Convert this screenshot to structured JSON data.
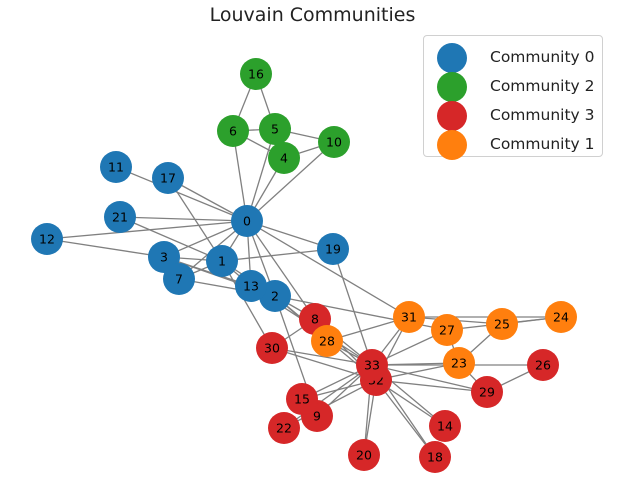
{
  "title": "Louvain Communities",
  "colors": {
    "Community 0": "#1f77b4",
    "Community 2": "#2ca02c",
    "Community 3": "#d62728",
    "Community 1": "#ff7f0e",
    "edge": "#808080"
  },
  "legend": [
    {
      "label": "Community 0",
      "color": "#1f77b4"
    },
    {
      "label": "Community 2",
      "color": "#2ca02c"
    },
    {
      "label": "Community 3",
      "color": "#d62728"
    },
    {
      "label": "Community 1",
      "color": "#ff7f0e"
    }
  ],
  "nodes": [
    {
      "id": "0",
      "community": "Community 0"
    },
    {
      "id": "1",
      "community": "Community 0"
    },
    {
      "id": "2",
      "community": "Community 0"
    },
    {
      "id": "3",
      "community": "Community 0"
    },
    {
      "id": "7",
      "community": "Community 0"
    },
    {
      "id": "11",
      "community": "Community 0"
    },
    {
      "id": "12",
      "community": "Community 0"
    },
    {
      "id": "13",
      "community": "Community 0"
    },
    {
      "id": "17",
      "community": "Community 0"
    },
    {
      "id": "19",
      "community": "Community 0"
    },
    {
      "id": "21",
      "community": "Community 0"
    },
    {
      "id": "4",
      "community": "Community 2"
    },
    {
      "id": "5",
      "community": "Community 2"
    },
    {
      "id": "6",
      "community": "Community 2"
    },
    {
      "id": "10",
      "community": "Community 2"
    },
    {
      "id": "16",
      "community": "Community 2"
    },
    {
      "id": "8",
      "community": "Community 3"
    },
    {
      "id": "9",
      "community": "Community 3"
    },
    {
      "id": "14",
      "community": "Community 3"
    },
    {
      "id": "15",
      "community": "Community 3"
    },
    {
      "id": "18",
      "community": "Community 3"
    },
    {
      "id": "20",
      "community": "Community 3"
    },
    {
      "id": "22",
      "community": "Community 3"
    },
    {
      "id": "26",
      "community": "Community 3"
    },
    {
      "id": "29",
      "community": "Community 3"
    },
    {
      "id": "30",
      "community": "Community 3"
    },
    {
      "id": "32",
      "community": "Community 3"
    },
    {
      "id": "33",
      "community": "Community 3"
    },
    {
      "id": "23",
      "community": "Community 1"
    },
    {
      "id": "24",
      "community": "Community 1"
    },
    {
      "id": "25",
      "community": "Community 1"
    },
    {
      "id": "27",
      "community": "Community 1"
    },
    {
      "id": "28",
      "community": "Community 1"
    },
    {
      "id": "31",
      "community": "Community 1"
    }
  ],
  "edges": [
    [
      "0",
      "1"
    ],
    [
      "0",
      "2"
    ],
    [
      "0",
      "3"
    ],
    [
      "0",
      "4"
    ],
    [
      "0",
      "5"
    ],
    [
      "0",
      "6"
    ],
    [
      "0",
      "7"
    ],
    [
      "0",
      "8"
    ],
    [
      "0",
      "10"
    ],
    [
      "0",
      "11"
    ],
    [
      "0",
      "12"
    ],
    [
      "0",
      "13"
    ],
    [
      "0",
      "17"
    ],
    [
      "0",
      "19"
    ],
    [
      "0",
      "21"
    ],
    [
      "0",
      "31"
    ],
    [
      "1",
      "2"
    ],
    [
      "1",
      "3"
    ],
    [
      "1",
      "7"
    ],
    [
      "1",
      "13"
    ],
    [
      "1",
      "17"
    ],
    [
      "1",
      "19"
    ],
    [
      "1",
      "21"
    ],
    [
      "1",
      "30"
    ],
    [
      "2",
      "3"
    ],
    [
      "2",
      "7"
    ],
    [
      "2",
      "8"
    ],
    [
      "2",
      "9"
    ],
    [
      "2",
      "13"
    ],
    [
      "2",
      "27"
    ],
    [
      "2",
      "28"
    ],
    [
      "2",
      "32"
    ],
    [
      "3",
      "7"
    ],
    [
      "3",
      "12"
    ],
    [
      "3",
      "13"
    ],
    [
      "4",
      "6"
    ],
    [
      "4",
      "10"
    ],
    [
      "5",
      "6"
    ],
    [
      "5",
      "10"
    ],
    [
      "5",
      "16"
    ],
    [
      "6",
      "16"
    ],
    [
      "8",
      "30"
    ],
    [
      "8",
      "32"
    ],
    [
      "8",
      "33"
    ],
    [
      "9",
      "33"
    ],
    [
      "13",
      "33"
    ],
    [
      "14",
      "32"
    ],
    [
      "14",
      "33"
    ],
    [
      "15",
      "32"
    ],
    [
      "15",
      "33"
    ],
    [
      "18",
      "32"
    ],
    [
      "18",
      "33"
    ],
    [
      "19",
      "33"
    ],
    [
      "20",
      "32"
    ],
    [
      "20",
      "33"
    ],
    [
      "22",
      "32"
    ],
    [
      "22",
      "33"
    ],
    [
      "23",
      "25"
    ],
    [
      "23",
      "27"
    ],
    [
      "23",
      "29"
    ],
    [
      "23",
      "32"
    ],
    [
      "23",
      "33"
    ],
    [
      "24",
      "25"
    ],
    [
      "24",
      "27"
    ],
    [
      "24",
      "31"
    ],
    [
      "25",
      "31"
    ],
    [
      "26",
      "29"
    ],
    [
      "26",
      "33"
    ],
    [
      "27",
      "33"
    ],
    [
      "28",
      "31"
    ],
    [
      "28",
      "33"
    ],
    [
      "29",
      "32"
    ],
    [
      "29",
      "33"
    ],
    [
      "30",
      "32"
    ],
    [
      "30",
      "33"
    ],
    [
      "31",
      "32"
    ],
    [
      "31",
      "33"
    ],
    [
      "32",
      "33"
    ]
  ]
}
